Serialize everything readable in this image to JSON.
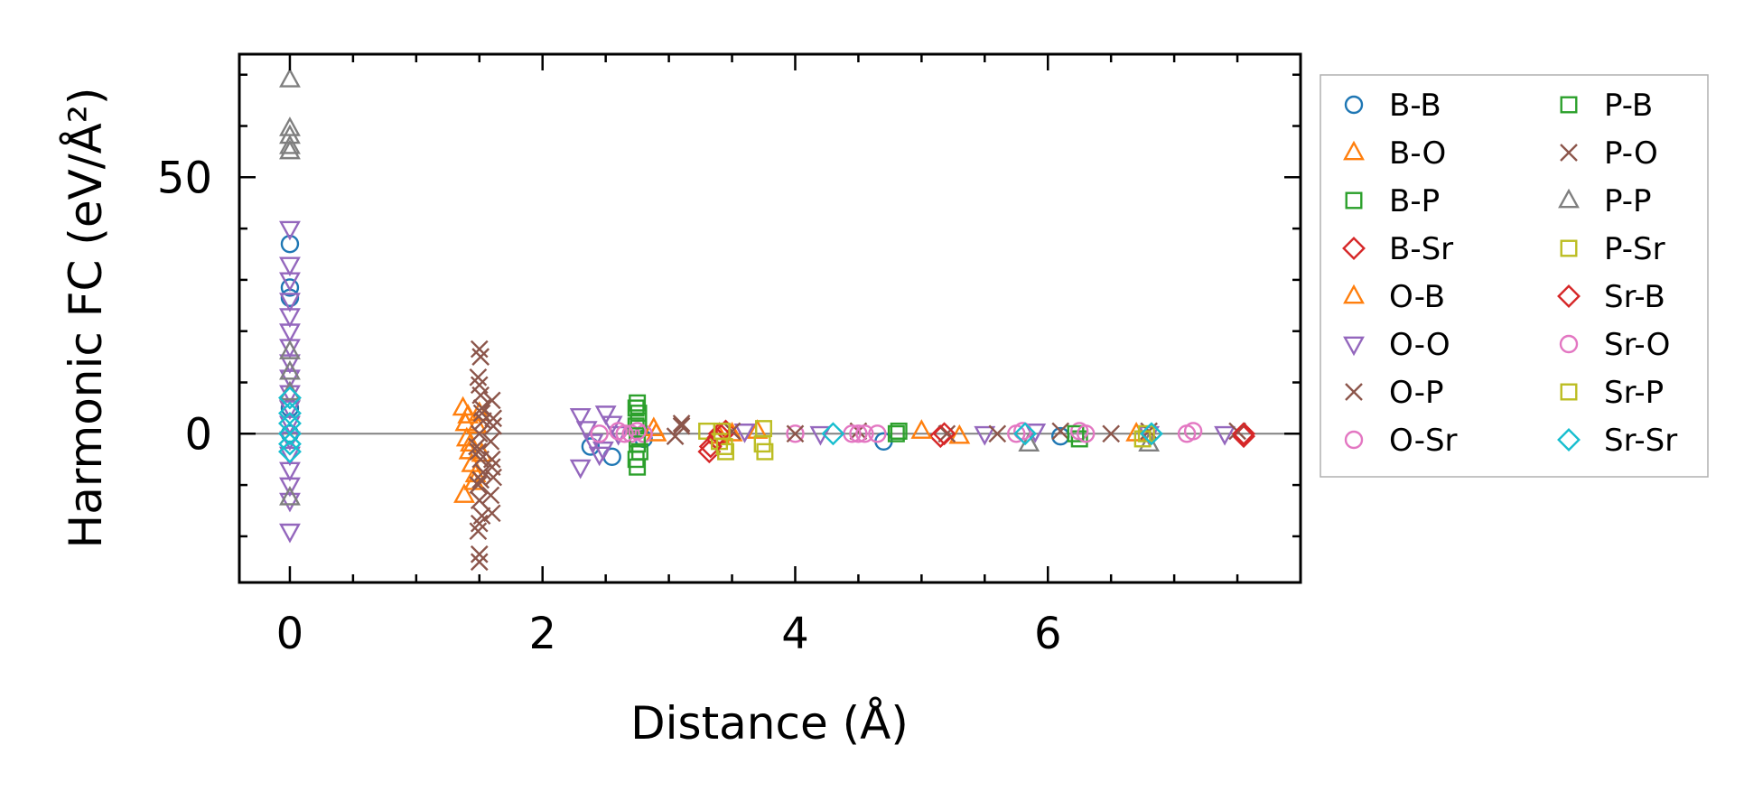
{
  "chart_data": {
    "type": "scatter",
    "title": "",
    "xlabel": "Distance (Å)",
    "ylabel": "Harmonic FC (eV/Å²)",
    "xlim": [
      -0.4,
      8.0
    ],
    "ylim": [
      -29,
      74
    ],
    "xticks": [
      0,
      2,
      4,
      6
    ],
    "yticks": [
      0,
      50
    ],
    "x_minor_step": 0.5,
    "y_minor_step": 10,
    "grid": false,
    "reference_line_y": 0,
    "legend_position": "outside-right",
    "legend_columns": 2,
    "series": [
      {
        "name": "B-B",
        "marker": "circle",
        "color": "#1f77b4",
        "points": [
          [
            0.0,
            37.0
          ],
          [
            0.0,
            28.5
          ],
          [
            0.0,
            26.5
          ],
          [
            0.0,
            5.0
          ],
          [
            0.0,
            0.0
          ],
          [
            2.38,
            -2.5
          ],
          [
            2.55,
            -4.5
          ],
          [
            2.8,
            -1.0
          ],
          [
            4.7,
            -1.5
          ],
          [
            6.1,
            -0.5
          ]
        ]
      },
      {
        "name": "B-O",
        "marker": "triangle-up",
        "color": "#ff7f0e",
        "points": [
          [
            1.37,
            5.0
          ],
          [
            1.39,
            2.0
          ],
          [
            1.4,
            -1.0
          ],
          [
            1.42,
            -3.5
          ],
          [
            1.44,
            -6.0
          ],
          [
            1.46,
            -9.5
          ],
          [
            1.38,
            -12.0
          ],
          [
            1.41,
            3.5
          ],
          [
            1.43,
            -2.0
          ],
          [
            2.9,
            0.0
          ],
          [
            3.4,
            -0.5
          ],
          [
            3.7,
            0.5
          ],
          [
            5.3,
            -0.5
          ],
          [
            6.7,
            0.0
          ]
        ]
      },
      {
        "name": "B-P",
        "marker": "square",
        "color": "#2ca02c",
        "points": [
          [
            2.75,
            6.0
          ],
          [
            2.76,
            4.0
          ],
          [
            2.74,
            1.5
          ],
          [
            2.75,
            -1.0
          ],
          [
            2.77,
            -3.5
          ],
          [
            2.75,
            -6.5
          ],
          [
            4.8,
            0.0
          ],
          [
            6.25,
            -1.0
          ]
        ]
      },
      {
        "name": "B-Sr",
        "marker": "diamond",
        "color": "#d62728",
        "points": [
          [
            3.32,
            -3.5
          ],
          [
            3.38,
            -1.0
          ],
          [
            3.45,
            0.5
          ],
          [
            5.15,
            -0.5
          ],
          [
            7.55,
            -0.5
          ]
        ]
      },
      {
        "name": "O-B",
        "marker": "triangle-up",
        "color": "#ff7f0e",
        "points": [
          [
            1.5,
            4.0
          ],
          [
            1.48,
            1.5
          ],
          [
            1.52,
            -4.0
          ],
          [
            1.47,
            -8.0
          ],
          [
            2.88,
            1.0
          ],
          [
            3.5,
            0.0
          ],
          [
            5.0,
            0.5
          ]
        ]
      },
      {
        "name": "O-O",
        "marker": "triangle-down",
        "color": "#9467bd",
        "points": [
          [
            0.0,
            40.0
          ],
          [
            0.0,
            33.0
          ],
          [
            0.0,
            30.0
          ],
          [
            0.0,
            26.0
          ],
          [
            0.0,
            23.0
          ],
          [
            0.0,
            20.0
          ],
          [
            0.0,
            17.0
          ],
          [
            0.0,
            14.0
          ],
          [
            0.0,
            11.0
          ],
          [
            0.0,
            8.0
          ],
          [
            0.0,
            5.0
          ],
          [
            0.0,
            2.0
          ],
          [
            0.0,
            -1.0
          ],
          [
            0.0,
            -4.0
          ],
          [
            0.0,
            -7.0
          ],
          [
            0.0,
            -10.0
          ],
          [
            0.0,
            -13.0
          ],
          [
            0.0,
            -19.0
          ],
          [
            2.3,
            3.5
          ],
          [
            2.35,
            1.0
          ],
          [
            2.4,
            -1.5
          ],
          [
            2.45,
            -4.0
          ],
          [
            2.3,
            -6.5
          ],
          [
            2.5,
            4.0
          ],
          [
            2.55,
            2.0
          ],
          [
            2.6,
            0.0
          ],
          [
            2.48,
            -3.0
          ],
          [
            3.6,
            0.5
          ],
          [
            4.2,
            0.0
          ],
          [
            5.5,
            0.0
          ],
          [
            5.9,
            0.5
          ],
          [
            6.8,
            0.0
          ],
          [
            7.4,
            0.0
          ]
        ]
      },
      {
        "name": "O-P",
        "marker": "x",
        "color": "#8c564b",
        "points": [
          [
            1.5,
            16.5
          ],
          [
            1.49,
            11.0
          ],
          [
            1.51,
            7.5
          ],
          [
            1.52,
            5.0
          ],
          [
            1.53,
            2.5
          ],
          [
            1.5,
            0.0
          ],
          [
            1.48,
            -2.5
          ],
          [
            1.51,
            -5.0
          ],
          [
            1.53,
            -7.5
          ],
          [
            1.49,
            -10.0
          ],
          [
            1.5,
            -13.0
          ],
          [
            1.52,
            -16.0
          ],
          [
            1.49,
            -19.0
          ],
          [
            1.5,
            -23.5
          ],
          [
            1.6,
            6.5
          ],
          [
            1.61,
            3.0
          ],
          [
            1.59,
            -1.5
          ],
          [
            1.6,
            -5.0
          ],
          [
            1.61,
            -8.5
          ],
          [
            1.59,
            -12.0
          ],
          [
            1.6,
            -15.5
          ],
          [
            3.1,
            1.5
          ],
          [
            3.05,
            -0.5
          ],
          [
            4.5,
            0.5
          ],
          [
            5.2,
            0.0
          ],
          [
            6.1,
            0.5
          ],
          [
            6.5,
            0.0
          ],
          [
            7.5,
            0.5
          ]
        ]
      },
      {
        "name": "O-Sr",
        "marker": "circle",
        "color": "#e377c2",
        "points": [
          [
            2.45,
            0.0
          ],
          [
            2.6,
            0.5
          ],
          [
            2.7,
            0.0
          ],
          [
            2.8,
            0.0
          ],
          [
            4.0,
            0.0
          ],
          [
            4.45,
            0.0
          ],
          [
            4.55,
            0.0
          ],
          [
            4.65,
            0.0
          ],
          [
            5.75,
            0.0
          ],
          [
            6.25,
            0.5
          ],
          [
            7.1,
            0.0
          ]
        ]
      },
      {
        "name": "P-B",
        "marker": "square",
        "color": "#2ca02c",
        "points": [
          [
            2.74,
            5.0
          ],
          [
            2.76,
            2.5
          ],
          [
            2.75,
            -2.0
          ],
          [
            2.74,
            -5.0
          ],
          [
            4.82,
            0.5
          ],
          [
            6.22,
            0.0
          ]
        ]
      },
      {
        "name": "P-O",
        "marker": "x",
        "color": "#8c564b",
        "points": [
          [
            1.51,
            15.0
          ],
          [
            1.5,
            9.5
          ],
          [
            1.52,
            4.0
          ],
          [
            1.49,
            -3.5
          ],
          [
            1.51,
            -9.0
          ],
          [
            1.5,
            -17.5
          ],
          [
            1.5,
            -25.0
          ],
          [
            1.61,
            1.5
          ],
          [
            1.6,
            -6.5
          ],
          [
            3.1,
            2.0
          ],
          [
            3.5,
            0.5
          ],
          [
            4.0,
            0.0
          ],
          [
            5.6,
            0.0
          ],
          [
            6.8,
            0.5
          ]
        ]
      },
      {
        "name": "P-P",
        "marker": "triangle-up",
        "color": "#7f7f7f",
        "points": [
          [
            0.0,
            69.0
          ],
          [
            0.0,
            59.5
          ],
          [
            0.0,
            58.0
          ],
          [
            0.0,
            56.0
          ],
          [
            0.0,
            55.0
          ],
          [
            0.0,
            16.0
          ],
          [
            0.0,
            12.0
          ],
          [
            0.0,
            8.0
          ],
          [
            0.0,
            -12.5
          ],
          [
            5.85,
            -2.0
          ],
          [
            6.8,
            -2.0
          ]
        ]
      },
      {
        "name": "P-Sr",
        "marker": "square",
        "color": "#bcbd22",
        "points": [
          [
            3.3,
            0.5
          ],
          [
            3.4,
            -1.5
          ],
          [
            3.45,
            -3.5
          ],
          [
            6.75,
            -1.0
          ]
        ]
      },
      {
        "name": "Sr-B",
        "marker": "diamond",
        "color": "#d62728",
        "points": [
          [
            3.33,
            -2.5
          ],
          [
            3.4,
            0.0
          ],
          [
            5.18,
            0.0
          ],
          [
            7.55,
            0.0
          ]
        ]
      },
      {
        "name": "Sr-O",
        "marker": "circle",
        "color": "#e377c2",
        "points": [
          [
            2.65,
            0.0
          ],
          [
            2.75,
            0.5
          ],
          [
            4.5,
            0.0
          ],
          [
            5.8,
            0.5
          ],
          [
            6.3,
            0.0
          ],
          [
            7.15,
            0.5
          ]
        ]
      },
      {
        "name": "Sr-P",
        "marker": "square",
        "color": "#bcbd22",
        "points": [
          [
            3.42,
            0.5
          ],
          [
            3.44,
            -2.5
          ],
          [
            3.75,
            1.0
          ],
          [
            3.74,
            -2.0
          ],
          [
            3.76,
            -3.5
          ],
          [
            6.78,
            0.0
          ]
        ]
      },
      {
        "name": "Sr-Sr",
        "marker": "diamond",
        "color": "#17becf",
        "points": [
          [
            0.0,
            7.0
          ],
          [
            0.0,
            4.0
          ],
          [
            0.0,
            2.0
          ],
          [
            0.0,
            0.0
          ],
          [
            0.0,
            -2.0
          ],
          [
            0.0,
            -3.5
          ],
          [
            4.3,
            0.0
          ],
          [
            5.82,
            0.0
          ],
          [
            6.82,
            0.0
          ]
        ]
      }
    ]
  }
}
